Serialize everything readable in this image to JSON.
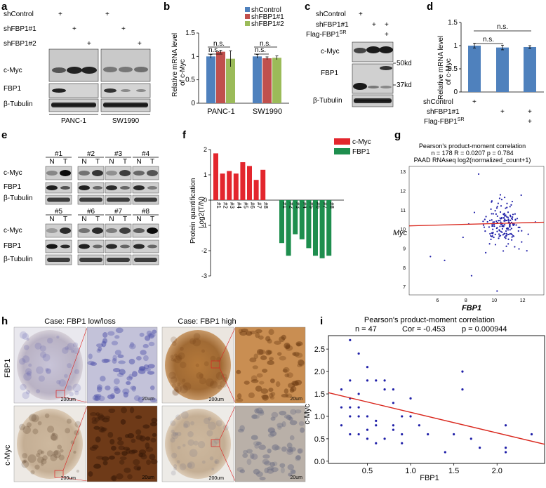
{
  "panel_letters": {
    "a": "a",
    "b": "b",
    "c": "c",
    "d": "d",
    "e": "e",
    "f": "f",
    "g": "g",
    "h": "h",
    "i": "i"
  },
  "colors": {
    "blue": "#4f81bd",
    "red": "#c0504d",
    "green": "#9bbb59",
    "bright_red": "#e3262d",
    "dark_green": "#1e8e4e",
    "scatter_blue": "#1f1fa8",
    "line_red": "#d9261c"
  },
  "panel_a": {
    "rows": [
      "shControl",
      "shFBP1#1",
      "shFBP1#2"
    ],
    "plus": "+",
    "blot_labels": [
      "c-Myc",
      "FBP1",
      "β-Tubulin"
    ],
    "cell_lines": [
      "PANC-1",
      "SW1990"
    ]
  },
  "panel_b": {
    "ylabel_1": "Relative mRNA level",
    "ylabel_2": "of c-Myc",
    "ns": "n.s."
  },
  "panel_c": {
    "rows": [
      "shControl",
      "shFBP1#1"
    ],
    "flag_label": "Flag-FBP1",
    "flag_sup": "SR",
    "plus": "+",
    "blot_labels": [
      "c-Myc",
      "FBP1",
      "β-Tubulin"
    ],
    "markers": [
      "50kd",
      "37kd"
    ]
  },
  "panel_d": {
    "ylabel_1": "Relative mRNA level",
    "ylabel_2": "of c-Myc",
    "ns": "n.s.",
    "rows": [
      "shControl",
      "shFBP1#1"
    ],
    "flag_label": "Flag-FBP1",
    "flag_sup": "SR",
    "plus": "+"
  },
  "panel_e": {
    "cases_top": [
      "#1",
      "#2",
      "#3",
      "#4"
    ],
    "cases_bottom": [
      "#5",
      "#6",
      "#7",
      "#8"
    ],
    "N": "N",
    "T": "T",
    "blot_labels": [
      "c-Myc",
      "FBP1",
      "β-Tubulin"
    ]
  },
  "panel_f": {
    "ylabel_1": "Protein quantification",
    "ylabel_2": "Log2(T/N)"
  },
  "panel_g": {
    "title_1": "Pearson's product-moment correlation",
    "title_2": "n = 178 R = 0.0207 p = 0.784",
    "title_3": "PAAD RNAseq log2(normalized_count+1)"
  },
  "panel_h": {
    "case_low": "Case: FBP1 low/loss",
    "case_high": "Case: FBP1 high",
    "row_fbp1": "FBP1",
    "row_cmyc": "c-Myc",
    "scale_200": "200um",
    "scale_20": "20um"
  },
  "panel_i": {
    "title_1": "Pearson's product-moment correlation",
    "n_text": "n = 47",
    "cor_text": "Cor = -0.453",
    "p_text": "p = 0.000944"
  },
  "chart_data": [
    {
      "panel": "b",
      "type": "bar",
      "categories": [
        "PANC-1",
        "SW1990"
      ],
      "series": [
        {
          "name": "shControl",
          "values": [
            1.0,
            1.0
          ],
          "errors": [
            0.04,
            0.04
          ]
        },
        {
          "name": "shFBP1#1",
          "values": [
            1.1,
            0.96
          ],
          "errors": [
            0.03,
            0.03
          ]
        },
        {
          "name": "shFBP1#2",
          "values": [
            0.95,
            0.97
          ],
          "errors": [
            0.17,
            0.04
          ]
        }
      ],
      "ylim": [
        0,
        1.5
      ],
      "yticks": [
        "0",
        "0.5",
        "1",
        "1.5"
      ],
      "ylabel": "Relative mRNA level of c-Myc",
      "annotations": [
        "n.s.",
        "n.s.",
        "n.s.",
        "n.s."
      ]
    },
    {
      "panel": "d",
      "type": "bar",
      "categories": [
        "shControl",
        "shFBP1#1",
        "shFBP1#1 + Flag-FBP1SR"
      ],
      "values": [
        1.0,
        0.96,
        0.97
      ],
      "errors": [
        0.05,
        0.05,
        0.03
      ],
      "ylim": [
        0,
        1.5
      ],
      "yticks": [
        "0",
        "0.5",
        "1",
        "1.5"
      ],
      "ylabel": "Relative mRNA level of c-Myc",
      "annotations": [
        "n.s.",
        "n.s."
      ]
    },
    {
      "panel": "f",
      "type": "bar",
      "ylabel": "Protein quantification Log2(T/N)",
      "ylim": [
        -3,
        2
      ],
      "yticks": [
        "-3",
        "-2",
        "-1",
        "0",
        "1",
        "2"
      ],
      "series": [
        {
          "name": "c-Myc",
          "categories": [
            "#1",
            "#2",
            "#3",
            "#4",
            "#5",
            "#6",
            "#7",
            "#8"
          ],
          "values": [
            1.85,
            1.05,
            1.15,
            1.05,
            1.5,
            1.35,
            0.8,
            1.2
          ]
        },
        {
          "name": "FBP1",
          "categories": [
            "#1",
            "#2",
            "#3",
            "#4",
            "#5",
            "#6",
            "#7",
            "#8"
          ],
          "values": [
            -1.7,
            -2.2,
            -1.35,
            -1.55,
            -1.9,
            -2.2,
            -2.3,
            -2.2
          ]
        }
      ]
    },
    {
      "panel": "g",
      "type": "scatter",
      "xlabel": "FBP1",
      "ylabel": "Myc",
      "xlim": [
        4,
        13.5
      ],
      "ylim": [
        6.6,
        13.3
      ],
      "xticks": [
        "6",
        "8",
        "10",
        "12"
      ],
      "yticks": [
        "7",
        "8",
        "9",
        "10",
        "11",
        "12",
        "13"
      ],
      "n_points": 178,
      "fit": {
        "slope": 0.02,
        "intercept": 10.12
      }
    },
    {
      "panel": "i",
      "type": "scatter",
      "xlabel": "FBP1",
      "ylabel": "c-Myc",
      "xlim": [
        0.05,
        2.55
      ],
      "ylim": [
        -0.05,
        2.8
      ],
      "xticks": [
        "0.5",
        "1.0",
        "1.5",
        "2.0"
      ],
      "yticks": [
        "0.0",
        "0.5",
        "1.0",
        "1.5",
        "2.0",
        "2.5"
      ],
      "fit": {
        "slope": -0.46,
        "intercept": 1.55
      },
      "x": [
        0.3,
        0.4,
        0.4,
        0.5,
        0.5,
        0.6,
        0.3,
        0.2,
        0.2,
        0.2,
        0.3,
        0.4,
        0.4,
        0.5,
        0.6,
        0.7,
        0.7,
        0.8,
        0.8,
        0.8,
        0.9,
        0.9,
        1.0,
        0.3,
        0.3,
        0.4,
        0.5,
        0.5,
        0.6,
        0.7,
        0.8,
        0.9,
        1.0,
        1.1,
        1.2,
        1.4,
        1.5,
        1.6,
        1.6,
        1.7,
        1.8,
        2.1,
        2.1,
        2.1,
        2.4,
        0.3,
        0.6
      ],
      "y": [
        2.7,
        2.4,
        1.5,
        2.1,
        1.8,
        1.8,
        1.8,
        1.6,
        1.2,
        0.8,
        1.0,
        0.6,
        1.2,
        1.0,
        0.9,
        1.6,
        1.8,
        1.6,
        0.7,
        1.3,
        0.6,
        1.0,
        1.4,
        1.2,
        0.6,
        1.0,
        0.5,
        0.7,
        0.4,
        0.5,
        0.8,
        0.4,
        1.0,
        0.8,
        0.6,
        0.2,
        0.6,
        1.6,
        2.0,
        0.5,
        0.3,
        0.8,
        0.3,
        0.2,
        0.6,
        1.4,
        0.8
      ]
    }
  ]
}
